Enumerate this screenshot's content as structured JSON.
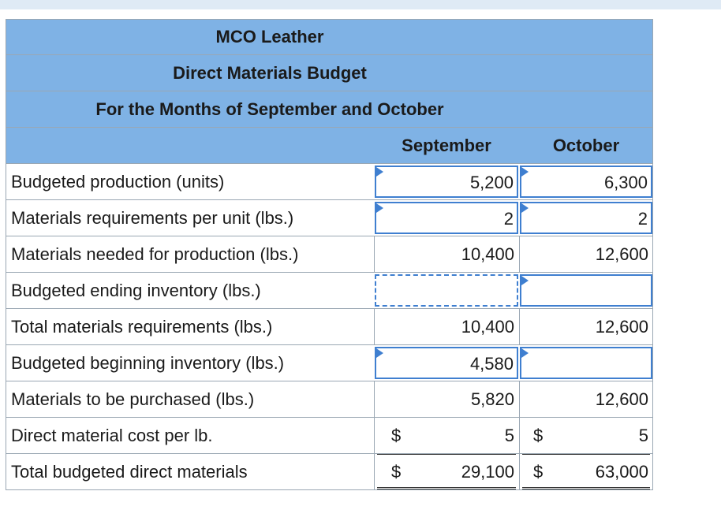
{
  "header": {
    "company": "MCO Leather",
    "report": "Direct Materials Budget",
    "period": "For the Months of September and October"
  },
  "columns": {
    "september": "September",
    "october": "October"
  },
  "rows": [
    {
      "label": "Budgeted production (units)",
      "sep": "5,200",
      "oct": "6,300"
    },
    {
      "label": "Materials requirements per unit (lbs.)",
      "sep": "2",
      "oct": "2"
    },
    {
      "label": "Materials needed for production (lbs.)",
      "sep": "10,400",
      "oct": "12,600"
    },
    {
      "label": "Budgeted ending inventory (lbs.)",
      "sep": "",
      "oct": ""
    },
    {
      "label": "Total materials requirements (lbs.)",
      "sep": "10,400",
      "oct": "12,600"
    },
    {
      "label": "Budgeted beginning inventory (lbs.)",
      "sep": "4,580",
      "oct": ""
    },
    {
      "label": "Materials to be purchased (lbs.)",
      "sep": "5,820",
      "oct": "12,600"
    },
    {
      "label": "Direct material cost per lb.",
      "sep_cur": "$",
      "sep": "5",
      "oct_cur": "$",
      "oct": "5"
    },
    {
      "label": "Total budgeted direct materials",
      "sep_cur": "$",
      "sep": "29,100",
      "oct_cur": "$",
      "oct": "63,000"
    }
  ]
}
